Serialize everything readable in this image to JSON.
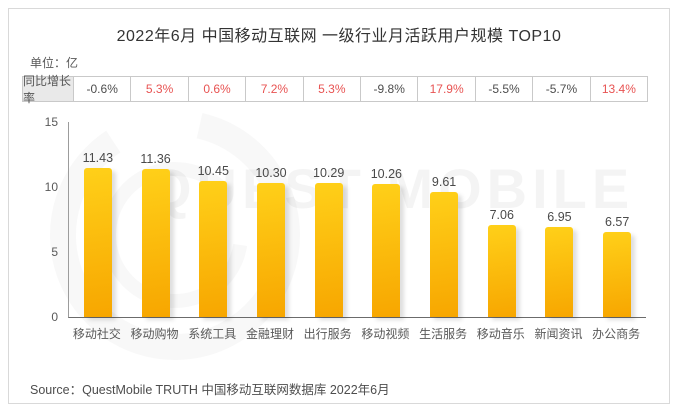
{
  "title": "2022年6月 中国移动互联网 一级行业月活跃用户规模 TOP10",
  "unit_label": "单位：亿",
  "growth_row": {
    "label": "同比增长率",
    "values": [
      "-0.6%",
      "5.3%",
      "0.6%",
      "7.2%",
      "5.3%",
      "-9.8%",
      "17.9%",
      "-5.5%",
      "-5.7%",
      "13.4%"
    ]
  },
  "chart_data": {
    "type": "bar",
    "title": "2022年6月 中国移动互联网 一级行业月活跃用户规模 TOP10",
    "categories": [
      "移动社交",
      "移动购物",
      "系统工具",
      "金融理财",
      "出行服务",
      "移动视频",
      "生活服务",
      "移动音乐",
      "新闻资讯",
      "办公商务"
    ],
    "values": [
      11.43,
      11.36,
      10.45,
      10.3,
      10.29,
      10.26,
      9.61,
      7.06,
      6.95,
      6.57
    ],
    "yoy_growth_pct": [
      -0.6,
      5.3,
      0.6,
      7.2,
      5.3,
      -9.8,
      17.9,
      -5.5,
      -5.7,
      13.4
    ],
    "xlabel": "",
    "ylabel": "单位：亿",
    "ylim": [
      0,
      15
    ],
    "yticks": [
      0,
      5,
      10,
      15
    ],
    "grid": false,
    "legend": false,
    "bar_color_top": "#ffd019",
    "bar_color_bottom": "#f7a600"
  },
  "watermark": {
    "text": "QUEST MOBILE"
  },
  "footer": {
    "source_label": "Source：",
    "brand": "QuestMobile",
    "source_rest": " TRUTH 中国移动互联网数据库 2022年6月"
  },
  "colors": {
    "positive_red": "#e85352",
    "negative_dark": "#4d4d4d",
    "brand_orange": "#f7941d",
    "value_label": "#4a4a4a"
  }
}
